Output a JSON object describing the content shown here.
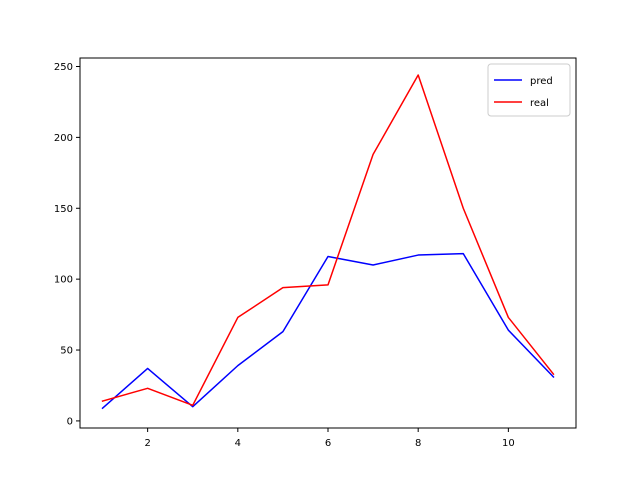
{
  "chart_data": {
    "type": "line",
    "x": [
      1,
      2,
      3,
      4,
      5,
      6,
      7,
      8,
      9,
      10,
      11
    ],
    "series": [
      {
        "name": "pred",
        "color": "#0000ff",
        "values": [
          9,
          37,
          10,
          39,
          63,
          116,
          110,
          117,
          118,
          64,
          31
        ]
      },
      {
        "name": "real",
        "color": "#ff0000",
        "values": [
          14,
          23,
          11,
          73,
          94,
          96,
          188,
          244,
          150,
          73,
          33
        ]
      }
    ],
    "title": "",
    "xlabel": "",
    "ylabel": "",
    "xlim": [
      0.5,
      11.5
    ],
    "ylim": [
      -5,
      256
    ],
    "xticks": [
      2,
      4,
      6,
      8,
      10
    ],
    "yticks": [
      0,
      50,
      100,
      150,
      200,
      250
    ],
    "grid": false,
    "legend_position": "top-right"
  }
}
